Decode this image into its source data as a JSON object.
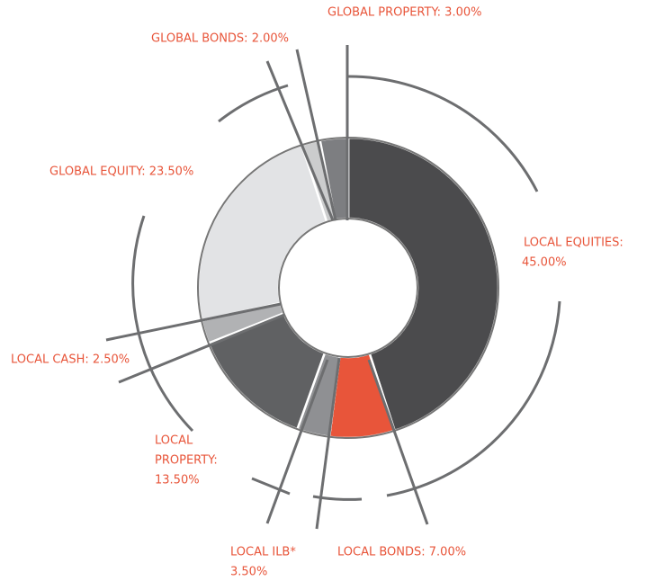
{
  "chart_data": {
    "type": "donut",
    "values": [
      45,
      7,
      3.5,
      13.5,
      2.5,
      23.5,
      2,
      3
    ],
    "value_labels": [
      [
        "LOCAL EQUITIES:",
        "45.00%"
      ],
      [
        "LOCAL BONDS: 7.00%"
      ],
      [
        "LOCAL ILB*",
        "3.50%"
      ],
      [
        "LOCAL",
        "PROPERTY:",
        "13.50%"
      ],
      [
        "LOCAL CASH: 2.50%"
      ],
      [
        "GLOBAL EQUITY: 23.50%"
      ],
      [
        "GLOBAL BONDS: 2.00%"
      ],
      [
        "GLOBAL PROPERTY: 3.00%"
      ]
    ],
    "colors": [
      "#4b4b4d",
      "#e8553a",
      "#8f9093",
      "#606163",
      "#b1b2b4",
      "#e2e3e5",
      "#cbcccd",
      "#7d7e81"
    ]
  }
}
